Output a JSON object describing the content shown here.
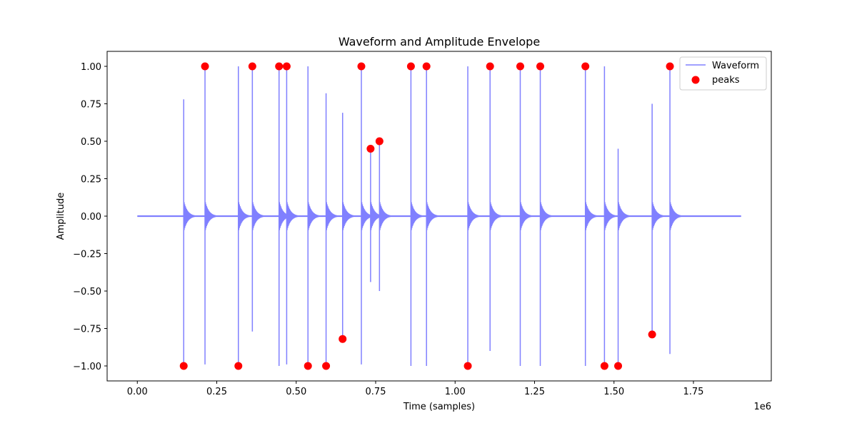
{
  "chart_data": {
    "type": "line",
    "title": "Waveform and Amplitude Envelope",
    "xlabel": "Time (samples)",
    "ylabel": "Amplitude",
    "x_offset_label": "1e6",
    "xlim": [
      -0.095,
      1.995
    ],
    "ylim": [
      -1.1,
      1.1
    ],
    "x_ticks": [
      0.0,
      0.25,
      0.5,
      0.75,
      1.0,
      1.25,
      1.5,
      1.75
    ],
    "x_tick_labels": [
      "0.00",
      "0.25",
      "0.50",
      "0.75",
      "1.00",
      "1.25",
      "1.50",
      "1.75"
    ],
    "y_ticks": [
      1.0,
      0.75,
      0.5,
      0.25,
      0.0,
      -0.25,
      -0.5,
      -0.75,
      -1.0
    ],
    "y_tick_labels": [
      "1.00",
      "0.75",
      "0.50",
      "0.25",
      "0.00",
      "−0.25",
      "−0.50",
      "−0.75",
      "−1.00"
    ],
    "grid": false,
    "legend_position": "top-right",
    "colors": {
      "waveform": "#8080ff",
      "peaks": "#ff0000"
    },
    "series": [
      {
        "name": "Waveform",
        "kind": "line",
        "x_range": [
          0.0,
          1.9
        ],
        "spikes": [
          {
            "x": 0.146,
            "top": 0.78,
            "bottom": -1.0
          },
          {
            "x": 0.213,
            "top": 1.0,
            "bottom": -0.99
          },
          {
            "x": 0.318,
            "top": 1.0,
            "bottom": -1.0
          },
          {
            "x": 0.362,
            "top": 1.0,
            "bottom": -0.77
          },
          {
            "x": 0.446,
            "top": 1.0,
            "bottom": -1.0
          },
          {
            "x": 0.47,
            "top": 1.0,
            "bottom": -0.99
          },
          {
            "x": 0.537,
            "top": 1.0,
            "bottom": -1.0
          },
          {
            "x": 0.594,
            "top": 0.82,
            "bottom": -1.0
          },
          {
            "x": 0.646,
            "top": 0.69,
            "bottom": -0.82
          },
          {
            "x": 0.705,
            "top": 1.0,
            "bottom": -0.99
          },
          {
            "x": 0.734,
            "top": 0.45,
            "bottom": -0.44
          },
          {
            "x": 0.762,
            "top": 0.5,
            "bottom": -0.5
          },
          {
            "x": 0.861,
            "top": 1.0,
            "bottom": -1.0
          },
          {
            "x": 0.91,
            "top": 1.0,
            "bottom": -1.0
          },
          {
            "x": 1.04,
            "top": 1.0,
            "bottom": -1.0
          },
          {
            "x": 1.11,
            "top": 1.0,
            "bottom": -0.9
          },
          {
            "x": 1.205,
            "top": 1.0,
            "bottom": -1.0
          },
          {
            "x": 1.268,
            "top": 1.0,
            "bottom": -1.0
          },
          {
            "x": 1.41,
            "top": 1.0,
            "bottom": -1.0
          },
          {
            "x": 1.47,
            "top": 1.0,
            "bottom": -1.0
          },
          {
            "x": 1.513,
            "top": 0.45,
            "bottom": -1.0
          },
          {
            "x": 1.62,
            "top": 0.75,
            "bottom": -0.79
          },
          {
            "x": 1.676,
            "top": 1.0,
            "bottom": -0.92
          }
        ]
      },
      {
        "name": "peaks",
        "kind": "scatter",
        "points": [
          {
            "x": 0.146,
            "y": -1.0
          },
          {
            "x": 0.213,
            "y": 1.0
          },
          {
            "x": 0.318,
            "y": -1.0
          },
          {
            "x": 0.362,
            "y": 1.0
          },
          {
            "x": 0.446,
            "y": 1.0
          },
          {
            "x": 0.47,
            "y": 1.0
          },
          {
            "x": 0.537,
            "y": -1.0
          },
          {
            "x": 0.594,
            "y": -1.0
          },
          {
            "x": 0.646,
            "y": -0.82
          },
          {
            "x": 0.705,
            "y": 1.0
          },
          {
            "x": 0.734,
            "y": 0.45
          },
          {
            "x": 0.762,
            "y": 0.5
          },
          {
            "x": 0.861,
            "y": 1.0
          },
          {
            "x": 0.91,
            "y": 1.0
          },
          {
            "x": 1.04,
            "y": -1.0
          },
          {
            "x": 1.11,
            "y": 1.0
          },
          {
            "x": 1.205,
            "y": 1.0
          },
          {
            "x": 1.268,
            "y": 1.0
          },
          {
            "x": 1.41,
            "y": 1.0
          },
          {
            "x": 1.47,
            "y": -1.0
          },
          {
            "x": 1.513,
            "y": -1.0
          },
          {
            "x": 1.62,
            "y": -0.79
          },
          {
            "x": 1.676,
            "y": 1.0
          }
        ]
      }
    ]
  }
}
